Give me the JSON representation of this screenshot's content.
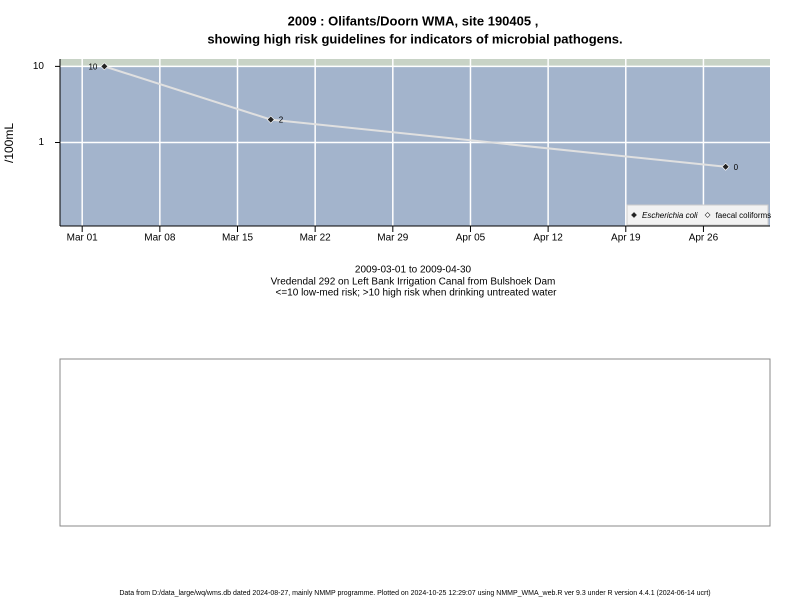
{
  "chart_data": {
    "type": "line",
    "title": "2009 : Olifants/Doorn WMA, site 190405 ,",
    "subtitle": "showing high risk guidelines for indicators of microbial pathogens.",
    "y_label": "/100mL",
    "x": [
      "2009-03-03",
      "2009-03-18",
      "2009-04-28"
    ],
    "series": [
      {
        "name": "Escherichia coli",
        "color": "#222222",
        "values": [
          10,
          2,
          0.48
        ],
        "value_labels": [
          "10",
          "2",
          "0"
        ]
      },
      {
        "name": "faecal coliforms",
        "color": "#ffffff",
        "values": [
          null,
          null,
          null
        ]
      }
    ],
    "line_color": "#e0e0e0",
    "guideline": 10,
    "log_y": true,
    "ylim": [
      0.08,
      12.5
    ],
    "yticks": [
      1,
      10
    ],
    "xlim": [
      "2009-02-27",
      "2009-05-02"
    ],
    "xticks": [
      {
        "value": "2009-03-01",
        "label": "Mar 01"
      },
      {
        "value": "2009-03-08",
        "label": "Mar 08"
      },
      {
        "value": "2009-03-15",
        "label": "Mar 15"
      },
      {
        "value": "2009-03-22",
        "label": "Mar 22"
      },
      {
        "value": "2009-03-29",
        "label": "Mar 29"
      },
      {
        "value": "2009-04-05",
        "label": "Apr 05"
      },
      {
        "value": "2009-04-12",
        "label": "Apr 12"
      },
      {
        "value": "2009-04-19",
        "label": "Apr 19"
      },
      {
        "value": "2009-04-26",
        "label": "Apr 26"
      }
    ],
    "grid": true,
    "legend": "bottom-right",
    "annotations": [
      "2009-03-01 to 2009-04-30",
      "Vredendal 292 on Left Bank Irrigation Canal from Bulshoek Dam",
      "<=10 low-med risk; >10 high risk when drinking untreated water"
    ],
    "footer": "Data from D:/data_large/wq/wms.db dated 2024-08-27, mainly NMMP programme. Plotted on 2024-10-25 12:29:07 using NMMP_WMA_web.R ver 9.3 under R version 4.4.1 (2024-06-14 ucrt)"
  }
}
